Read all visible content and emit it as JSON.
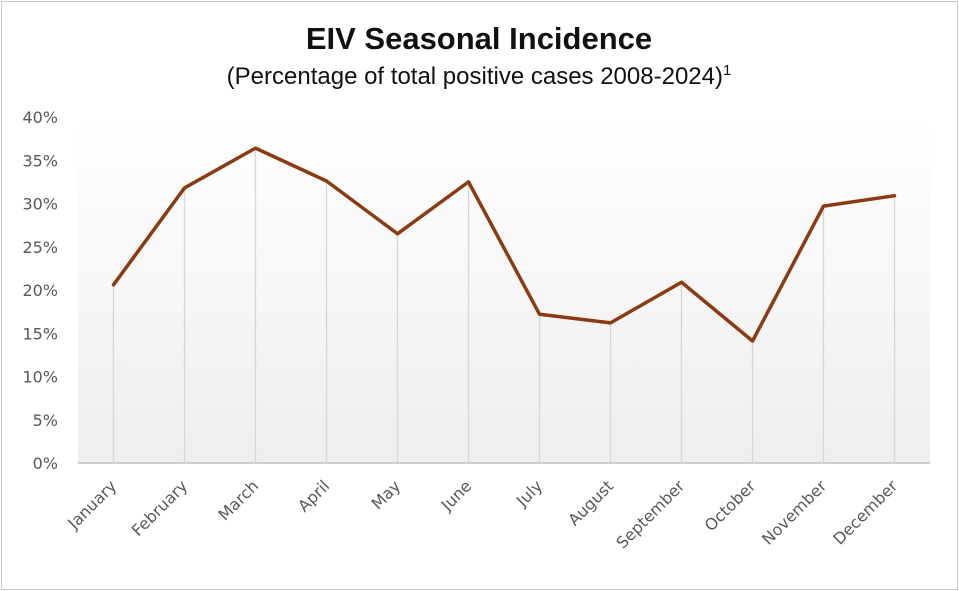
{
  "chart_data": {
    "type": "line",
    "title": "EIV Seasonal Incidence",
    "subtitle": "(Percentage of total positive cases 2008-2024)",
    "subtitle_superscript": "1",
    "xlabel": "",
    "ylabel": "",
    "categories": [
      "January",
      "February",
      "March",
      "April",
      "May",
      "June",
      "July",
      "August",
      "September",
      "October",
      "November",
      "December"
    ],
    "series": [
      {
        "values": [
          20.6,
          31.8,
          36.4,
          32.6,
          26.5,
          32.5,
          17.2,
          16.2,
          20.9,
          14.1,
          29.7,
          30.9
        ],
        "color": "#8b3a12"
      }
    ],
    "ylim": [
      0,
      40
    ],
    "yticks": [
      0,
      5,
      10,
      15,
      20,
      25,
      30,
      35,
      40
    ],
    "ytick_labels": [
      "0%",
      "5%",
      "10%",
      "15%",
      "20%",
      "25%",
      "30%",
      "35%",
      "40%"
    ],
    "grid": "vertical drop lines",
    "legend": "none"
  }
}
